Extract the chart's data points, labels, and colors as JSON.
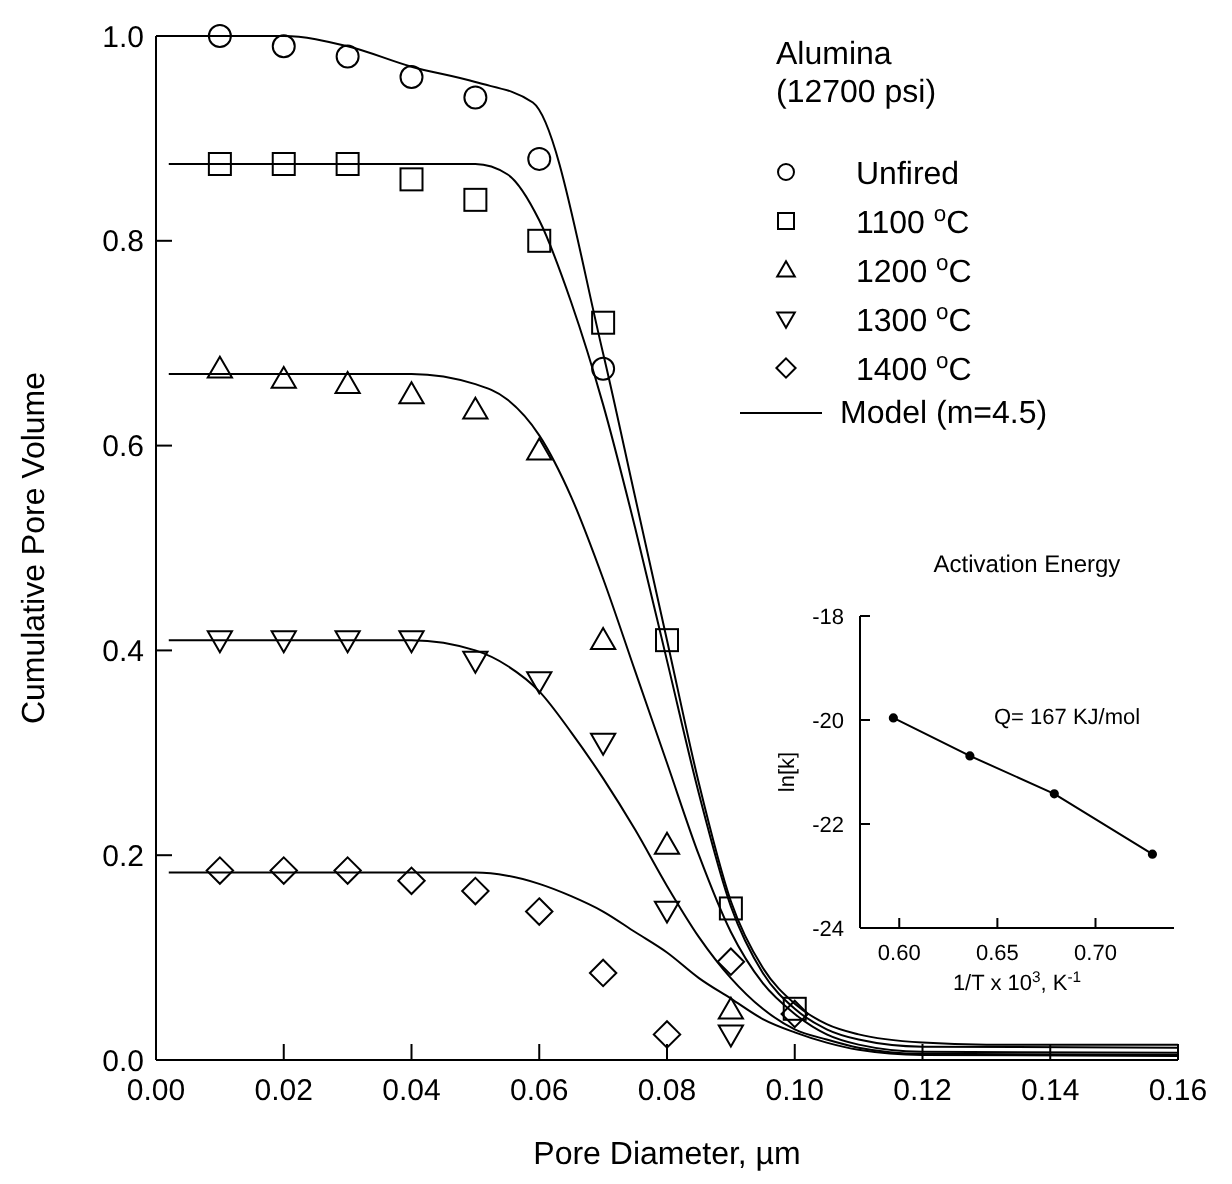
{
  "chart_data": [
    {
      "type": "scatter",
      "title": "Alumina",
      "subtitle": "(12700 psi)",
      "xlabel": "Pore Diameter, µm",
      "ylabel": "Cumulative Pore Volume",
      "xlim": [
        0,
        0.16
      ],
      "ylim": [
        0,
        1.0
      ],
      "xticks": [
        {
          "value": 0,
          "label": "0.00"
        },
        {
          "value": 0.02,
          "label": "0.02"
        },
        {
          "value": 0.04,
          "label": "0.04"
        },
        {
          "value": 0.06,
          "label": "0.06"
        },
        {
          "value": 0.08,
          "label": "0.08"
        },
        {
          "value": 0.1,
          "label": "0.10"
        },
        {
          "value": 0.12,
          "label": "0.12"
        },
        {
          "value": 0.14,
          "label": "0.14"
        },
        {
          "value": 0.16,
          "label": "0.16"
        }
      ],
      "yticks": [
        {
          "value": 0,
          "label": "0.0"
        },
        {
          "value": 0.2,
          "label": "0.2"
        },
        {
          "value": 0.4,
          "label": "0.4"
        },
        {
          "value": 0.6,
          "label": "0.6"
        },
        {
          "value": 0.8,
          "label": "0.8"
        },
        {
          "value": 1,
          "label": "1.0"
        }
      ],
      "grid": false,
      "legend": "top right",
      "series": [
        {
          "name": "Unfired",
          "marker": "circle",
          "color": "#000000",
          "x": [
            0.01,
            0.02,
            0.03,
            0.04,
            0.05,
            0.06,
            0.07
          ],
          "values": [
            1.0,
            0.99,
            0.98,
            0.96,
            0.94,
            0.88,
            0.675
          ]
        },
        {
          "name": "1100 $^{o}$C",
          "marker": "square",
          "color": "#000000",
          "x": [
            0.01,
            0.02,
            0.03,
            0.04,
            0.05,
            0.06,
            0.07,
            0.08,
            0.09,
            0.1
          ],
          "values": [
            0.875,
            0.875,
            0.875,
            0.86,
            0.84,
            0.8,
            0.72,
            0.41,
            0.148,
            0.05
          ]
        },
        {
          "name": "1200 $^{o}$C",
          "marker": "triangle",
          "color": "#000000",
          "x": [
            0.01,
            0.02,
            0.03,
            0.04,
            0.05,
            0.06,
            0.07,
            0.08,
            0.09
          ],
          "values": [
            0.675,
            0.665,
            0.66,
            0.65,
            0.635,
            0.595,
            0.41,
            0.21,
            0.049
          ]
        },
        {
          "name": "1300 $^{o}$C",
          "marker": "triangle-down",
          "color": "#000000",
          "x": [
            0.01,
            0.02,
            0.03,
            0.04,
            0.05,
            0.06,
            0.07,
            0.08,
            0.09
          ],
          "values": [
            0.41,
            0.41,
            0.41,
            0.41,
            0.39,
            0.37,
            0.31,
            0.146,
            0.025
          ]
        },
        {
          "name": "1400 $^{o}$C",
          "marker": "diamond",
          "color": "#000000",
          "x": [
            0.01,
            0.02,
            0.03,
            0.04,
            0.05,
            0.06,
            0.07,
            0.08,
            0.09,
            0.1
          ],
          "values": [
            0.185,
            0.185,
            0.185,
            0.175,
            0.165,
            0.145,
            0.085,
            0.025,
            0.096,
            0.045
          ]
        },
        {
          "name": "Model (m=4.5)",
          "type": "line",
          "marker": "none",
          "color": "#000000",
          "x": [
            0.002,
            0.02,
            0.03,
            0.04,
            0.05,
            0.059,
            0.07,
            0.075,
            0.08,
            0.085,
            0.09,
            0.095,
            0.1,
            0.105,
            0.11,
            0.12,
            0.13,
            0.16
          ],
          "values": [
            1.0,
            1.0,
            0.99,
            0.97,
            0.955,
            0.935,
            0.69,
            0.55,
            0.41,
            0.27,
            0.155,
            0.09,
            0.055,
            0.035,
            0.025,
            0.017,
            0.015,
            0.015
          ]
        },
        {
          "type": "line",
          "marker": "none",
          "color": "#000000",
          "x": [
            0.002,
            0.05,
            0.055,
            0.06,
            0.065,
            0.07,
            0.075,
            0.08,
            0.085,
            0.09,
            0.095,
            0.1,
            0.105,
            0.11,
            0.12,
            0.16
          ],
          "values": [
            0.875,
            0.875,
            0.865,
            0.82,
            0.74,
            0.64,
            0.52,
            0.39,
            0.26,
            0.15,
            0.085,
            0.05,
            0.03,
            0.02,
            0.013,
            0.012
          ]
        },
        {
          "type": "line",
          "marker": "none",
          "color": "#000000",
          "x": [
            0.002,
            0.04,
            0.05,
            0.055,
            0.06,
            0.065,
            0.07,
            0.075,
            0.08,
            0.085,
            0.09,
            0.095,
            0.1,
            0.105,
            0.11,
            0.12,
            0.16
          ],
          "values": [
            0.67,
            0.67,
            0.66,
            0.645,
            0.61,
            0.55,
            0.47,
            0.38,
            0.29,
            0.2,
            0.125,
            0.075,
            0.045,
            0.025,
            0.015,
            0.008,
            0.007
          ]
        },
        {
          "type": "line",
          "marker": "none",
          "color": "#000000",
          "x": [
            0.002,
            0.04,
            0.05,
            0.055,
            0.06,
            0.065,
            0.07,
            0.075,
            0.08,
            0.085,
            0.09,
            0.095,
            0.1,
            0.105,
            0.11,
            0.12,
            0.16
          ],
          "values": [
            0.41,
            0.41,
            0.4,
            0.385,
            0.36,
            0.32,
            0.275,
            0.225,
            0.17,
            0.12,
            0.08,
            0.05,
            0.03,
            0.02,
            0.012,
            0.006,
            0.005
          ]
        },
        {
          "type": "line",
          "marker": "none",
          "color": "#000000",
          "x": [
            0.002,
            0.05,
            0.055,
            0.06,
            0.065,
            0.07,
            0.075,
            0.08,
            0.085,
            0.09,
            0.095,
            0.1,
            0.105,
            0.11,
            0.12,
            0.16
          ],
          "values": [
            0.183,
            0.183,
            0.18,
            0.172,
            0.16,
            0.145,
            0.125,
            0.105,
            0.08,
            0.06,
            0.04,
            0.027,
            0.017,
            0.01,
            0.005,
            0.004
          ]
        }
      ]
    },
    {
      "type": "line",
      "title": "Activation Energy",
      "xlabel": "1/T x 10$^{3}$, K$^{-1}$",
      "ylabel": "ln[k]",
      "annotations": [
        "Q= 167 KJ/mol"
      ],
      "xlim": [
        0.58,
        0.74
      ],
      "ylim": [
        -24,
        -18
      ],
      "xticks": [
        {
          "value": 0.6,
          "label": "0.60"
        },
        {
          "value": 0.65,
          "label": "0.65"
        },
        {
          "value": 0.7,
          "label": "0.70"
        }
      ],
      "yticks": [
        -24,
        -22,
        -20,
        -18
      ],
      "grid": false,
      "legend": false,
      "series": [
        {
          "marker": "circle",
          "color": "#000000",
          "x": [
            0.597,
            0.636,
            0.679,
            0.729
          ],
          "values": [
            -19.96,
            -20.69,
            -21.42,
            -22.58
          ]
        }
      ]
    }
  ]
}
